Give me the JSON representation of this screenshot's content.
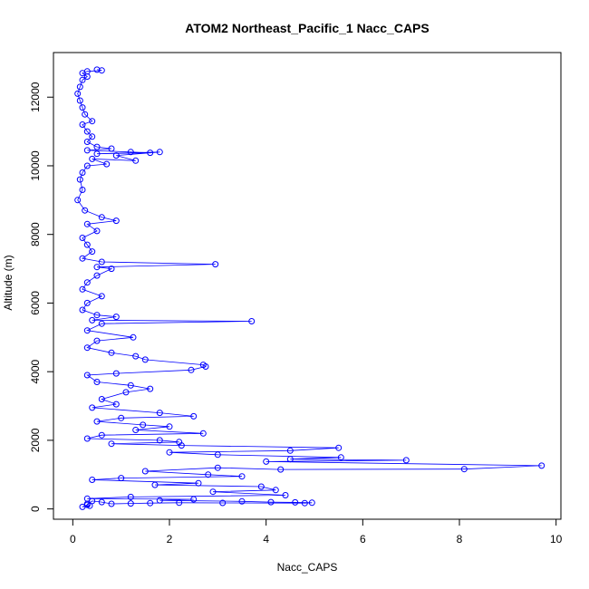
{
  "chart_data": {
    "type": "scatter",
    "title": "ATOM2 Northeast_Pacific_1 Nacc_CAPS",
    "xlabel": "Nacc_CAPS",
    "ylabel": "Altitude (m)",
    "xlim": [
      -0.4,
      10.1
    ],
    "ylim": [
      -300,
      13300
    ],
    "x_ticks": [
      0,
      2,
      4,
      6,
      8,
      10
    ],
    "y_ticks": [
      0,
      2000,
      4000,
      6000,
      8000,
      10000,
      12000
    ],
    "grid": false,
    "legend": "none",
    "color": "#0000ff",
    "marker": "open-circle",
    "connected": true,
    "series": [
      {
        "points": [
          [
            0.5,
            12800
          ],
          [
            0.6,
            12780
          ],
          [
            0.3,
            12750
          ],
          [
            0.2,
            12700
          ],
          [
            0.3,
            12600
          ],
          [
            0.2,
            12500
          ],
          [
            0.15,
            12300
          ],
          [
            0.1,
            12100
          ],
          [
            0.15,
            11900
          ],
          [
            0.2,
            11700
          ],
          [
            0.25,
            11500
          ],
          [
            0.4,
            11300
          ],
          [
            0.2,
            11200
          ],
          [
            0.3,
            11000
          ],
          [
            0.4,
            10850
          ],
          [
            0.3,
            10700
          ],
          [
            0.5,
            10550
          ],
          [
            0.8,
            10500
          ],
          [
            0.3,
            10450
          ],
          [
            1.2,
            10400
          ],
          [
            1.6,
            10380
          ],
          [
            0.5,
            10350
          ],
          [
            1.8,
            10400
          ],
          [
            0.9,
            10300
          ],
          [
            1.3,
            10150
          ],
          [
            0.4,
            10200
          ],
          [
            0.7,
            10050
          ],
          [
            0.3,
            10000
          ],
          [
            0.2,
            9800
          ],
          [
            0.15,
            9600
          ],
          [
            0.2,
            9300
          ],
          [
            0.1,
            9000
          ],
          [
            0.25,
            8700
          ],
          [
            0.6,
            8500
          ],
          [
            0.9,
            8400
          ],
          [
            0.3,
            8300
          ],
          [
            0.5,
            8100
          ],
          [
            0.2,
            7900
          ],
          [
            0.3,
            7700
          ],
          [
            0.4,
            7500
          ],
          [
            0.2,
            7300
          ],
          [
            0.6,
            7200
          ],
          [
            2.95,
            7130
          ],
          [
            0.5,
            7050
          ],
          [
            0.8,
            7000
          ],
          [
            0.5,
            6800
          ],
          [
            0.3,
            6600
          ],
          [
            0.2,
            6400
          ],
          [
            0.6,
            6200
          ],
          [
            0.3,
            6000
          ],
          [
            0.2,
            5800
          ],
          [
            0.5,
            5650
          ],
          [
            0.9,
            5600
          ],
          [
            0.4,
            5500
          ],
          [
            3.7,
            5470
          ],
          [
            0.6,
            5400
          ],
          [
            0.3,
            5200
          ],
          [
            1.25,
            5000
          ],
          [
            0.5,
            4900
          ],
          [
            0.3,
            4700
          ],
          [
            0.8,
            4550
          ],
          [
            1.3,
            4450
          ],
          [
            1.5,
            4350
          ],
          [
            2.7,
            4200
          ],
          [
            2.75,
            4150
          ],
          [
            2.45,
            4050
          ],
          [
            0.9,
            3950
          ],
          [
            0.3,
            3900
          ],
          [
            0.5,
            3700
          ],
          [
            1.2,
            3600
          ],
          [
            1.6,
            3500
          ],
          [
            1.1,
            3400
          ],
          [
            0.6,
            3200
          ],
          [
            0.9,
            3050
          ],
          [
            0.4,
            2950
          ],
          [
            1.8,
            2800
          ],
          [
            2.5,
            2700
          ],
          [
            1.0,
            2650
          ],
          [
            0.5,
            2550
          ],
          [
            1.45,
            2450
          ],
          [
            2.0,
            2400
          ],
          [
            1.3,
            2300
          ],
          [
            2.7,
            2200
          ],
          [
            0.6,
            2150
          ],
          [
            0.3,
            2050
          ],
          [
            1.8,
            2000
          ],
          [
            2.2,
            1950
          ],
          [
            0.8,
            1900
          ],
          [
            2.25,
            1850
          ],
          [
            5.5,
            1780
          ],
          [
            4.5,
            1700
          ],
          [
            2.0,
            1650
          ],
          [
            3.0,
            1580
          ],
          [
            5.55,
            1500
          ],
          [
            4.5,
            1450
          ],
          [
            6.9,
            1420
          ],
          [
            4.0,
            1380
          ],
          [
            9.7,
            1260
          ],
          [
            8.1,
            1160
          ],
          [
            4.3,
            1150
          ],
          [
            3.0,
            1200
          ],
          [
            1.5,
            1100
          ],
          [
            2.8,
            1000
          ],
          [
            3.5,
            950
          ],
          [
            1.0,
            900
          ],
          [
            0.4,
            850
          ],
          [
            2.6,
            750
          ],
          [
            1.7,
            700
          ],
          [
            3.9,
            650
          ],
          [
            4.2,
            550
          ],
          [
            2.9,
            500
          ],
          [
            4.4,
            400
          ],
          [
            1.2,
            350
          ],
          [
            0.3,
            300
          ],
          [
            2.5,
            280
          ],
          [
            1.8,
            250
          ],
          [
            3.5,
            220
          ],
          [
            4.1,
            200
          ],
          [
            4.6,
            190
          ],
          [
            4.95,
            180
          ],
          [
            4.8,
            170
          ],
          [
            3.1,
            175
          ],
          [
            2.2,
            180
          ],
          [
            1.6,
            170
          ],
          [
            1.2,
            160
          ],
          [
            0.8,
            150
          ],
          [
            0.6,
            200
          ],
          [
            0.4,
            230
          ],
          [
            0.3,
            120
          ],
          [
            0.2,
            60
          ],
          [
            0.35,
            90
          ],
          [
            0.3,
            150
          ]
        ]
      }
    ]
  }
}
